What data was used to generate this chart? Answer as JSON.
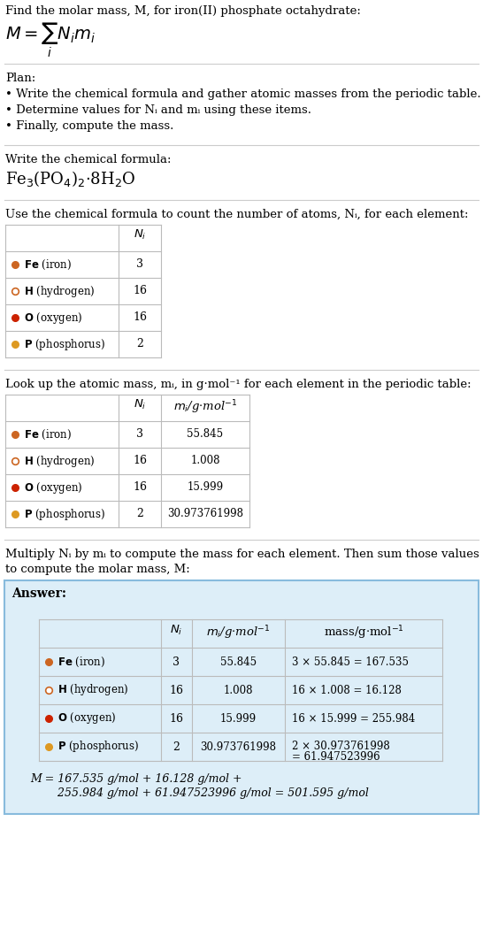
{
  "title_text": "Find the molar mass, M, for iron(II) phosphate octahydrate:",
  "plan_header": "Plan:",
  "plan_bullets": [
    "• Write the chemical formula and gather atomic masses from the periodic table.",
    "• Determine values for Nᵢ and mᵢ using these items.",
    "• Finally, compute the mass."
  ],
  "formula_section_header": "Write the chemical formula:",
  "count_section_header": "Use the chemical formula to count the number of atoms, Nᵢ, for each element:",
  "lookup_section_header": "Look up the atomic mass, mᵢ, in g·mol⁻¹ for each element in the periodic table:",
  "multiply_section_header_1": "Multiply Nᵢ by mᵢ to compute the mass for each element. Then sum those values",
  "multiply_section_header_2": "to compute the molar mass, M:",
  "elements": [
    {
      "symbol": "Fe",
      "name": "iron",
      "color": "#cc6622",
      "filled": true,
      "Ni": "3",
      "mi": "55.845",
      "mass_calc_1": "3 × 55.845 = 167.535",
      "mass_calc_2": ""
    },
    {
      "symbol": "H",
      "name": "hydrogen",
      "color": "#cc6622",
      "filled": false,
      "Ni": "16",
      "mi": "1.008",
      "mass_calc_1": "16 × 1.008 = 16.128",
      "mass_calc_2": ""
    },
    {
      "symbol": "O",
      "name": "oxygen",
      "color": "#cc2200",
      "filled": true,
      "Ni": "16",
      "mi": "15.999",
      "mass_calc_1": "16 × 15.999 = 255.984",
      "mass_calc_2": ""
    },
    {
      "symbol": "P",
      "name": "phosphorus",
      "color": "#dd9922",
      "filled": true,
      "Ni": "2",
      "mi": "30.973761998",
      "mass_calc_1": "2 × 30.973761998",
      "mass_calc_2": "= 61.947523996"
    }
  ],
  "answer_box_color": "#ddeef8",
  "answer_box_border": "#88bbdd",
  "final_answer_1": "M = 167.535 g/mol + 16.128 g/mol +",
  "final_answer_2": "    255.984 g/mol + 61.947523996 g/mol = 501.595 g/mol",
  "bg_color": "#ffffff",
  "text_color": "#000000",
  "gray_text_color": "#555555",
  "table_border_color": "#bbbbbb",
  "hline_color": "#cccccc"
}
